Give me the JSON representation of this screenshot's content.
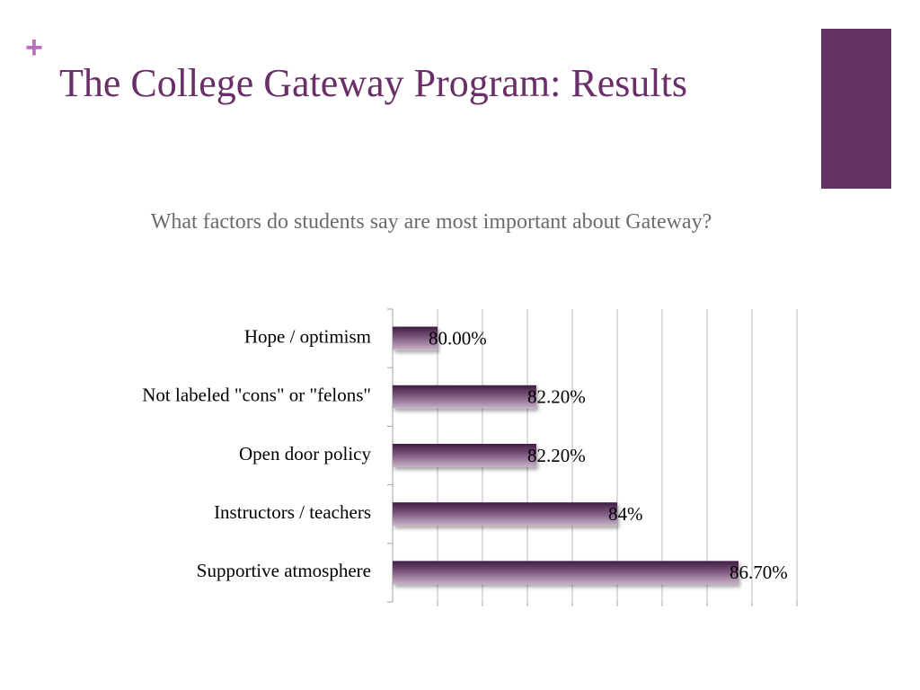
{
  "slide": {
    "plus_glyph": "+",
    "title": "The College Gateway Program: Results",
    "accent_color": "#633163",
    "plus_color": "#b96fbf",
    "title_color": "#6a2f68",
    "subtitle_color": "#6b6b6b"
  },
  "chart_data": {
    "type": "bar",
    "orientation": "horizontal",
    "title": "What factors do students say are most important about Gateway?",
    "categories": [
      "Hope / optimism",
      "Not labeled \"cons\" or \"felons\"",
      "Open door policy",
      "Instructors / teachers",
      "Supportive atmosphere"
    ],
    "values": [
      80.0,
      82.2,
      82.2,
      84.0,
      86.7
    ],
    "value_labels": [
      "80.00%",
      "82.20%",
      "82.20%",
      "84%",
      "86.70%"
    ],
    "xlim": [
      79,
      88
    ],
    "grid": true,
    "legend": "none",
    "bar_color": "#7b4f7a"
  }
}
